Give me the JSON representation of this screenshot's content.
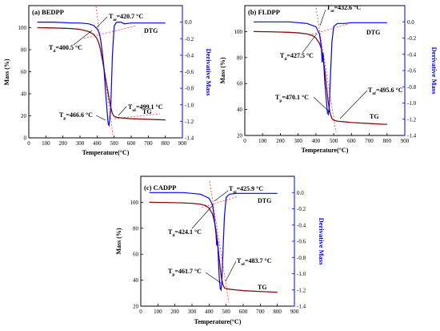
{
  "chart_data": [
    {
      "type": "line",
      "panel_label": "(a) BEDPP",
      "xlabel": "Temperature(°C)",
      "ylabel": "Mass (%)",
      "y2label": "Derivative Mass",
      "xlim": [
        0,
        900
      ],
      "ylim": [
        0,
        120
      ],
      "y2lim": [
        -1.4,
        0.2
      ],
      "xticks": [
        "0",
        "100",
        "200",
        "300",
        "400",
        "500",
        "600",
        "700",
        "800",
        "900"
      ],
      "yticks": [
        "0",
        "20",
        "40",
        "60",
        "80",
        "100"
      ],
      "y2ticks": [
        "0.0",
        "-0.2",
        "-0.4",
        "-0.6",
        "-0.8",
        "-1.0",
        "-1.2",
        "-1.4"
      ],
      "series": [
        {
          "name": "TG",
          "axis": "left",
          "color": "#000000",
          "x": [
            50,
            150,
            250,
            300,
            350,
            380,
            400,
            410,
            420,
            430,
            440,
            450,
            460,
            470,
            480,
            490,
            500,
            520,
            560,
            600,
            700,
            800
          ],
          "values": [
            100,
            99.7,
            99.2,
            98.5,
            96.5,
            94,
            90,
            86,
            80,
            72,
            63,
            54,
            45,
            36,
            28,
            22,
            19.5,
            18.5,
            17.8,
            17.4,
            16.8,
            16.3
          ]
        },
        {
          "name": "DTG",
          "axis": "right",
          "color": "#0000ff",
          "x": [
            50,
            150,
            250,
            300,
            350,
            380,
            400,
            410,
            420,
            430,
            440,
            450,
            460,
            465,
            470,
            480,
            490,
            500,
            510,
            520,
            540,
            560,
            600,
            700,
            800
          ],
          "values": [
            0.0,
            0.0,
            -0.01,
            -0.01,
            -0.02,
            -0.04,
            -0.08,
            -0.12,
            -0.2,
            -0.35,
            -0.55,
            -0.85,
            -1.1,
            -1.23,
            -1.25,
            -1.05,
            -0.4,
            -0.05,
            -0.01,
            0.0,
            0.0,
            -0.02,
            -0.01,
            -0.01,
            -0.01
          ]
        }
      ],
      "annotations": [
        {
          "label": "T",
          "sub": "oi",
          "value": "=420.7 °C"
        },
        {
          "label": "T",
          "sub": "d",
          "value": "=400.5 °C"
        },
        {
          "label": "T",
          "sub": "of",
          "value": "=499.1 °C"
        },
        {
          "label": "T",
          "sub": "p",
          "value": "=466.6 °C"
        }
      ],
      "series_labels": [
        "DTG",
        "TG"
      ]
    },
    {
      "type": "line",
      "panel_label": "(b) FLDPP",
      "xlabel": "Temperature(°C)",
      "ylabel": "Mass (%)",
      "y2label": "Derivative Mass",
      "xlim": [
        0,
        900
      ],
      "ylim": [
        20,
        120
      ],
      "y2lim": [
        -1.4,
        0.2
      ],
      "xticks": [
        "0",
        "100",
        "200",
        "300",
        "400",
        "500",
        "600",
        "700",
        "800",
        "900"
      ],
      "yticks": [
        "20",
        "40",
        "60",
        "80",
        "100"
      ],
      "y2ticks": [
        "0.0",
        "-0.2",
        "-0.4",
        "-0.6",
        "-0.8",
        "-1.0",
        "-1.2",
        "-1.4"
      ],
      "series": [
        {
          "name": "TG",
          "axis": "left",
          "color": "#000000",
          "x": [
            50,
            150,
            250,
            300,
            350,
            380,
            400,
            420,
            430,
            440,
            450,
            460,
            470,
            480,
            490,
            500,
            520,
            560,
            600,
            700,
            800
          ],
          "values": [
            100,
            99.8,
            99.4,
            99,
            98.2,
            97,
            95,
            91,
            87,
            80,
            70,
            57,
            45,
            37,
            33,
            31.8,
            31,
            30.5,
            30,
            29.2,
            28.5
          ]
        },
        {
          "name": "DTG",
          "axis": "right",
          "color": "#0000ff",
          "x": [
            50,
            150,
            250,
            300,
            350,
            400,
            420,
            430,
            435,
            440,
            445,
            450,
            460,
            465,
            470,
            475,
            480,
            490,
            500,
            520,
            560,
            600,
            700,
            800
          ],
          "values": [
            0.0,
            0.0,
            0.0,
            -0.01,
            -0.02,
            -0.06,
            -0.15,
            -0.3,
            -0.5,
            -0.38,
            -0.55,
            -0.75,
            -1.0,
            -1.12,
            -1.14,
            -1.05,
            -0.75,
            -0.25,
            -0.06,
            -0.02,
            -0.02,
            -0.01,
            -0.01,
            -0.01
          ]
        }
      ],
      "annotations": [
        {
          "label": "T",
          "sub": "oi",
          "value": "=432.6 °C"
        },
        {
          "label": "T",
          "sub": "d",
          "value": "=427.5 °C"
        },
        {
          "label": "T",
          "sub": "of",
          "value": "=495.6 °C"
        },
        {
          "label": "T",
          "sub": "p",
          "value": "=470.1 °C"
        }
      ],
      "series_labels": [
        "DTG",
        "TG"
      ]
    },
    {
      "type": "line",
      "panel_label": "(c) CADPP",
      "xlabel": "Temperature(°C)",
      "ylabel": "Mass (%)",
      "y2label": "Derivative Mass",
      "xlim": [
        0,
        900
      ],
      "ylim": [
        20,
        120
      ],
      "y2lim": [
        -1.4,
        0.2
      ],
      "xticks": [
        "0",
        "100",
        "200",
        "300",
        "400",
        "500",
        "600",
        "700",
        "800",
        "900"
      ],
      "yticks": [
        "20",
        "40",
        "60",
        "80",
        "100"
      ],
      "y2ticks": [
        "0.0",
        "-0.2",
        "-0.4",
        "-0.6",
        "-0.8",
        "-1.0",
        "-1.2",
        "-1.4"
      ],
      "series": [
        {
          "name": "TG",
          "axis": "left",
          "color": "#000000",
          "x": [
            50,
            150,
            250,
            300,
            350,
            380,
            400,
            420,
            430,
            440,
            450,
            460,
            470,
            480,
            490,
            500,
            520,
            560,
            600,
            700,
            800
          ],
          "values": [
            100,
            99.8,
            99.5,
            99.2,
            98.5,
            97.4,
            95.5,
            91,
            86,
            79,
            69,
            56,
            44,
            37,
            34,
            33.5,
            33,
            32.5,
            32,
            31.3,
            30.7
          ]
        },
        {
          "name": "DTG",
          "axis": "right",
          "color": "#0000ff",
          "x": [
            50,
            150,
            250,
            300,
            350,
            400,
            420,
            430,
            440,
            445,
            450,
            455,
            460,
            465,
            470,
            475,
            480,
            490,
            500,
            520,
            560,
            600,
            700,
            800
          ],
          "values": [
            0.0,
            0.0,
            0.0,
            -0.01,
            -0.02,
            -0.07,
            -0.15,
            -0.3,
            -0.5,
            -0.65,
            -0.6,
            -0.85,
            -1.05,
            -1.18,
            -1.2,
            -1.1,
            -0.8,
            -0.3,
            -0.06,
            -0.02,
            -0.01,
            -0.01,
            -0.01,
            -0.01
          ]
        }
      ],
      "annotations": [
        {
          "label": "T",
          "sub": "oi",
          "value": "=425.9 °C"
        },
        {
          "label": "T",
          "sub": "d",
          "value": "=424.1 °C"
        },
        {
          "label": "T",
          "sub": "of",
          "value": "=483.7 °C"
        },
        {
          "label": "T",
          "sub": "p",
          "value": "=461.7 °C"
        }
      ],
      "series_labels": [
        "DTG",
        "TG"
      ]
    }
  ]
}
